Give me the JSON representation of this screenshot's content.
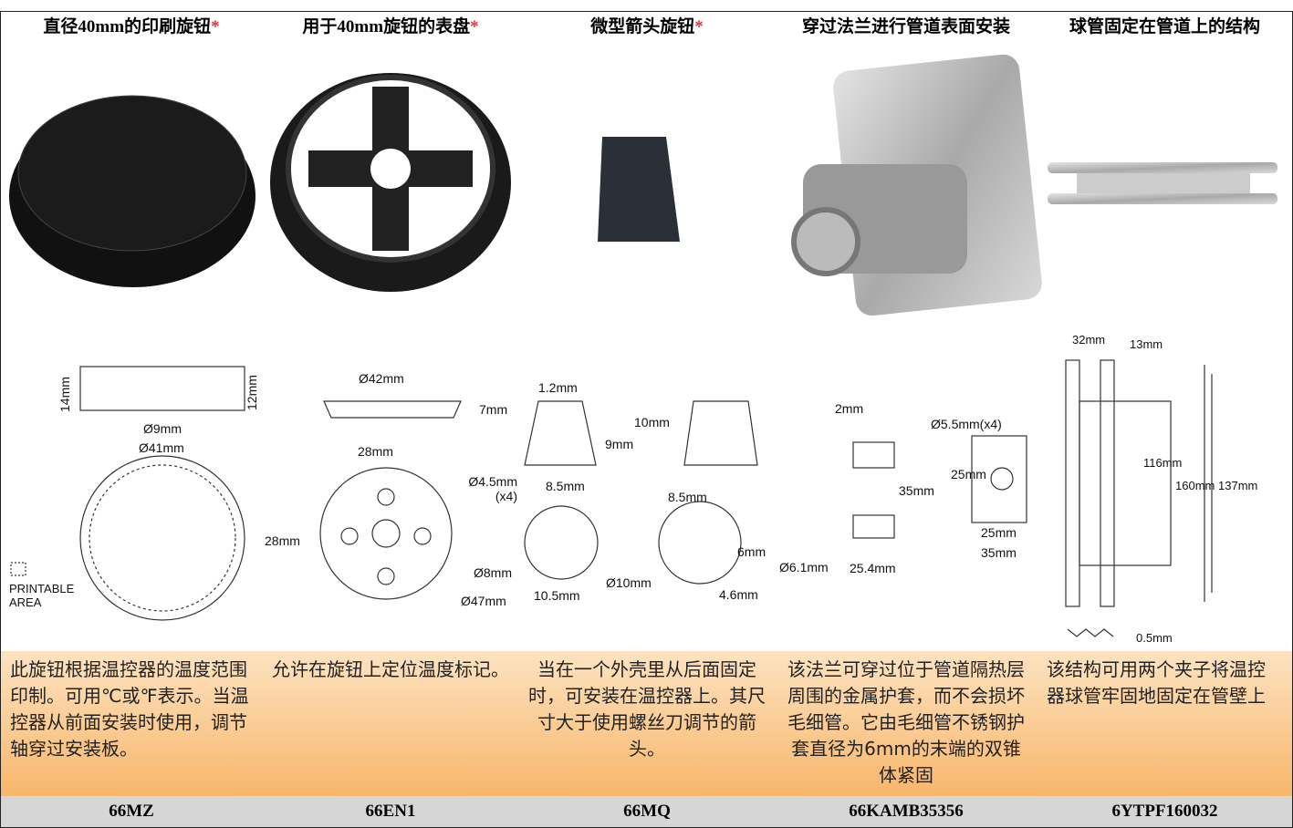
{
  "columns": [
    {
      "header": {
        "title": "直径40mm的印刷旋钮",
        "note": "*"
      },
      "drawing_labels": [
        "14mm",
        "12mm",
        "Ø9mm",
        "Ø41mm",
        "PRINTABLE AREA"
      ],
      "description": "此旋钮根据温控器的温度范围印制。可用℃或℉表示。当温控器从前面安装时使用，调节轴穿过安装板。",
      "code": "66MZ"
    },
    {
      "header": {
        "title": "用于40mm旋钮的表盘",
        "note": "*"
      },
      "drawing_labels": [
        "Ø42mm",
        "7mm",
        "28mm",
        "Ø4.5mm (x4)",
        "28mm",
        "Ø8mm",
        "Ø47mm"
      ],
      "description": "允许在旋钮上定位温度标记。",
      "code": "66EN1"
    },
    {
      "header": {
        "title": "微型箭头旋钮",
        "note": "*"
      },
      "drawing_labels": [
        "1.2mm",
        "10mm",
        "9mm",
        "8.5mm",
        "8.5mm",
        "6mm",
        "Ø10mm",
        "10.5mm",
        "4.6mm"
      ],
      "description": "当在一个外壳里从后面固定时，可安装在温控器上。其尺寸大于使用螺丝刀调节的箭头。",
      "code": "66MQ"
    },
    {
      "header": {
        "title": "穿过法兰进行管道表面安装"
      },
      "drawing_labels": [
        "2mm",
        "Ø5.5mm(x4)",
        "25mm",
        "35mm",
        "25mm",
        "35mm",
        "Ø6.1mm",
        "25.4mm"
      ],
      "description": "该法兰可穿过位于管道隔热层周围的金属护套，而不会损坏毛细管。它由毛细管不锈钢护套直径为6mm的末端的双锥体紧固",
      "code": "66KAMB35356"
    },
    {
      "header": {
        "title": "球管固定在管道上的结构"
      },
      "drawing_labels": [
        "32mm",
        "13mm",
        "116mm",
        "160mm",
        "137mm",
        "0.5mm"
      ],
      "description": "该结构可用两个夹子将温控器球管牢固地固定在管壁上",
      "code": "6YTPF160032"
    }
  ]
}
